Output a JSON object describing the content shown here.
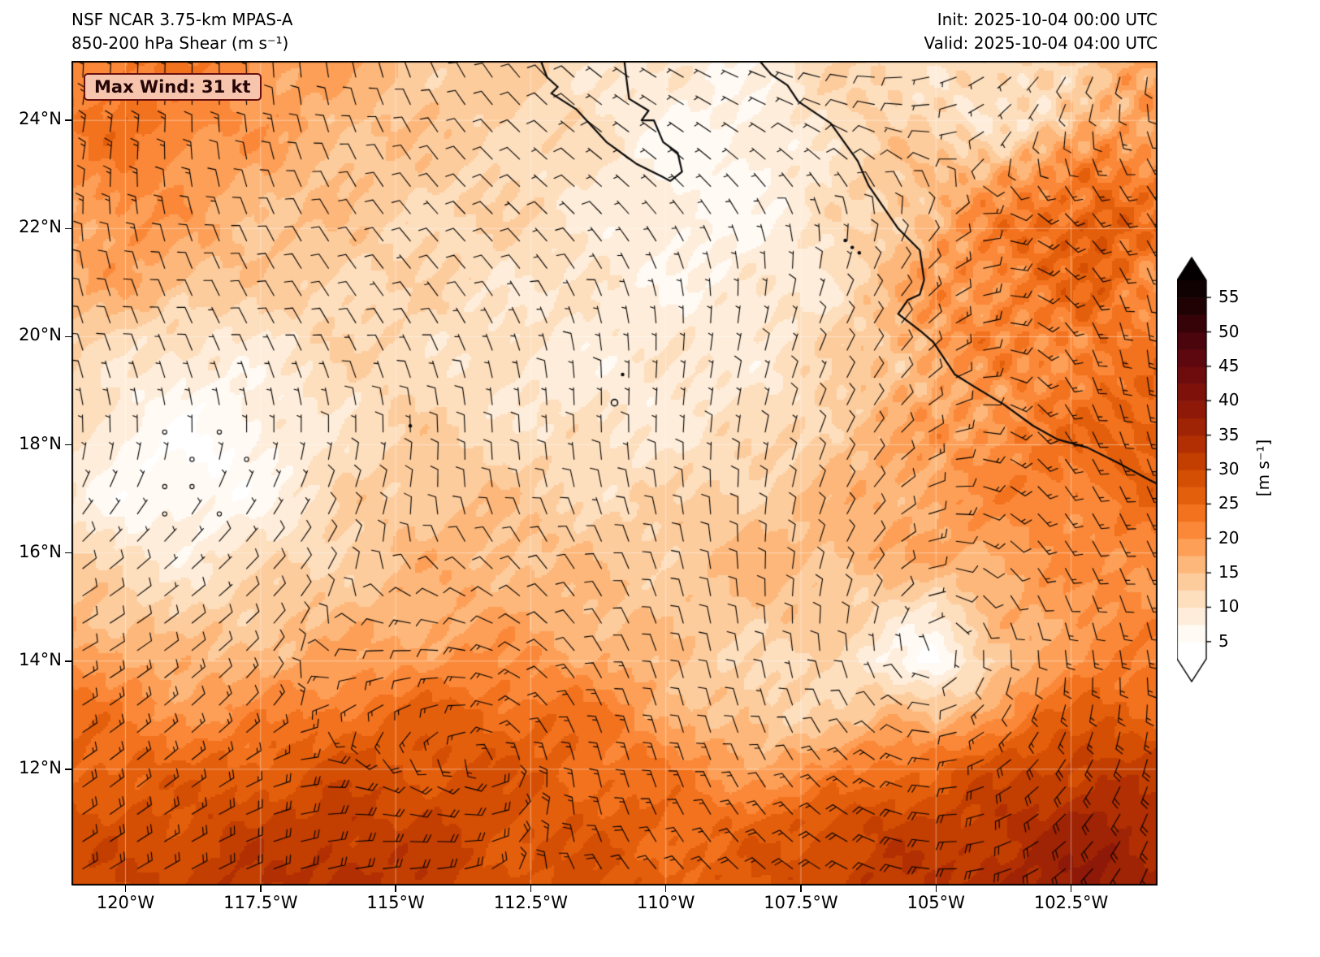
{
  "header": {
    "title_line1": "NSF NCAR 3.75-km MPAS-A",
    "title_line2": "850-200 hPa Shear (m s⁻¹)",
    "init_time": "Init: 2025-10-04 00:00 UTC",
    "valid_time": "Valid: 2025-10-04 04:00 UTC"
  },
  "map": {
    "max_wind_label": "Max Wind: 31 kt"
  },
  "chart_data": {
    "type": "heatmap",
    "title": "850-200 hPa Shear",
    "units": "m s⁻¹",
    "model": "NSF NCAR 3.75-km MPAS-A",
    "init": "2025-10-04 00:00 UTC",
    "valid": "2025-10-04 04:00 UTC",
    "max_wind_kt": 31,
    "overlay": "wind barbs (kt); open circles = calm",
    "region": "Eastern Pacific / Mexico, Baja California peninsula and mainland coast",
    "lon_range_w": [
      121.0,
      100.9
    ],
    "lat_range_n": [
      9.85,
      25.1
    ],
    "x_ticks": [
      {
        "label": "120°W",
        "lon": 120
      },
      {
        "label": "117.5°W",
        "lon": 117.5
      },
      {
        "label": "115°W",
        "lon": 115
      },
      {
        "label": "112.5°W",
        "lon": 112.5
      },
      {
        "label": "110°W",
        "lon": 110
      },
      {
        "label": "107.5°W",
        "lon": 107.5
      },
      {
        "label": "105°W",
        "lon": 105
      },
      {
        "label": "102.5°W",
        "lon": 102.5
      }
    ],
    "y_ticks": [
      {
        "label": "12°N",
        "lat": 12
      },
      {
        "label": "14°N",
        "lat": 14
      },
      {
        "label": "16°N",
        "lat": 16
      },
      {
        "label": "18°N",
        "lat": 18
      },
      {
        "label": "20°N",
        "lat": 20
      },
      {
        "label": "22°N",
        "lat": 22
      },
      {
        "label": "24°N",
        "lat": 24
      }
    ],
    "colorbar": {
      "label": "[m s⁻¹]",
      "ticks": [
        5,
        10,
        15,
        20,
        25,
        30,
        35,
        40,
        45,
        50,
        55
      ],
      "level_step": 2.5,
      "stops": [
        [
          0,
          "#ffffff"
        ],
        [
          5,
          "#ffffff"
        ],
        [
          7.5,
          "#fef4e9"
        ],
        [
          10,
          "#fde5cb"
        ],
        [
          12.5,
          "#fdd6ae"
        ],
        [
          15,
          "#fdc28c"
        ],
        [
          17.5,
          "#fdab67"
        ],
        [
          20,
          "#fd9346"
        ],
        [
          22.5,
          "#f87d2a"
        ],
        [
          25,
          "#ec6712"
        ],
        [
          27.5,
          "#dc5605"
        ],
        [
          30,
          "#cc4501"
        ],
        [
          32.5,
          "#ba3601"
        ],
        [
          35,
          "#a72803"
        ],
        [
          37.5,
          "#961e06"
        ],
        [
          40,
          "#861409"
        ],
        [
          42.5,
          "#760f0c"
        ],
        [
          45,
          "#66090e"
        ],
        [
          47.5,
          "#54060e"
        ],
        [
          50,
          "#40040b"
        ],
        [
          52.5,
          "#2b0207"
        ],
        [
          55,
          "#150103"
        ],
        [
          60,
          "#000000"
        ]
      ]
    },
    "grid": {
      "lons_w": [
        121,
        120,
        119,
        118,
        117,
        116,
        115,
        114,
        113,
        112,
        111,
        110,
        109,
        108,
        107,
        106,
        105,
        104,
        103,
        102,
        101
      ],
      "lats_n": [
        25,
        24,
        23,
        22,
        21,
        20,
        19,
        18,
        17,
        16,
        15,
        14,
        13,
        12,
        11,
        10
      ],
      "shear_ms": [
        [
          22,
          23,
          22,
          21,
          19,
          17,
          15,
          14,
          13,
          12,
          10,
          9,
          8,
          9,
          11,
          12,
          10,
          9,
          11,
          14,
          16
        ],
        [
          22,
          24,
          22,
          20,
          18,
          16,
          15,
          14,
          13,
          12,
          10,
          8,
          7,
          8,
          11,
          12,
          10,
          9,
          10,
          15,
          18
        ],
        [
          20,
          22,
          20,
          18,
          16,
          15,
          14,
          13,
          12,
          11,
          9,
          7,
          6,
          8,
          10,
          13,
          14,
          16,
          19,
          22,
          20
        ],
        [
          18,
          20,
          18,
          16,
          15,
          14,
          13,
          12,
          12,
          11,
          9,
          8,
          7,
          8,
          10,
          12,
          16,
          20,
          24,
          26,
          22
        ],
        [
          16,
          18,
          16,
          14,
          13,
          13,
          12,
          12,
          11,
          10,
          9,
          8,
          8,
          9,
          10,
          14,
          18,
          20,
          22,
          24,
          20
        ],
        [
          14,
          12,
          10,
          10,
          11,
          12,
          12,
          11,
          10,
          10,
          9,
          9,
          9,
          10,
          11,
          14,
          18,
          20,
          20,
          22,
          20
        ],
        [
          12,
          9,
          7,
          7,
          9,
          11,
          12,
          11,
          10,
          9,
          9,
          9,
          10,
          10,
          12,
          14,
          16,
          18,
          20,
          22,
          24
        ],
        [
          10,
          7,
          5,
          5,
          8,
          11,
          13,
          13,
          12,
          11,
          10,
          10,
          11,
          12,
          14,
          16,
          18,
          20,
          22,
          24,
          26
        ],
        [
          10,
          6,
          5,
          6,
          9,
          12,
          14,
          15,
          14,
          13,
          12,
          12,
          13,
          14,
          15,
          17,
          18,
          20,
          22,
          22,
          24
        ],
        [
          12,
          10,
          9,
          10,
          11,
          13,
          15,
          16,
          16,
          15,
          14,
          14,
          15,
          16,
          16,
          17,
          18,
          18,
          20,
          20,
          22
        ],
        [
          16,
          14,
          12,
          13,
          14,
          15,
          16,
          17,
          17,
          16,
          15,
          14,
          14,
          15,
          14,
          12,
          10,
          16,
          18,
          20,
          20
        ],
        [
          20,
          18,
          16,
          16,
          17,
          18,
          19,
          20,
          20,
          19,
          17,
          15,
          13,
          12,
          12,
          8,
          5,
          12,
          18,
          22,
          22
        ],
        [
          24,
          22,
          20,
          20,
          22,
          24,
          25,
          26,
          25,
          24,
          22,
          18,
          14,
          12,
          14,
          16,
          14,
          20,
          24,
          26,
          26
        ],
        [
          26,
          26,
          25,
          26,
          27,
          28,
          28,
          28,
          27,
          26,
          24,
          22,
          20,
          18,
          20,
          24,
          26,
          28,
          30,
          32,
          30
        ],
        [
          28,
          28,
          28,
          30,
          30,
          32,
          30,
          30,
          28,
          27,
          26,
          25,
          24,
          26,
          28,
          30,
          30,
          32,
          34,
          36,
          34
        ],
        [
          28,
          30,
          30,
          32,
          32,
          34,
          32,
          30,
          28,
          28,
          27,
          26,
          26,
          28,
          30,
          32,
          32,
          34,
          36,
          38,
          36
        ]
      ]
    }
  }
}
